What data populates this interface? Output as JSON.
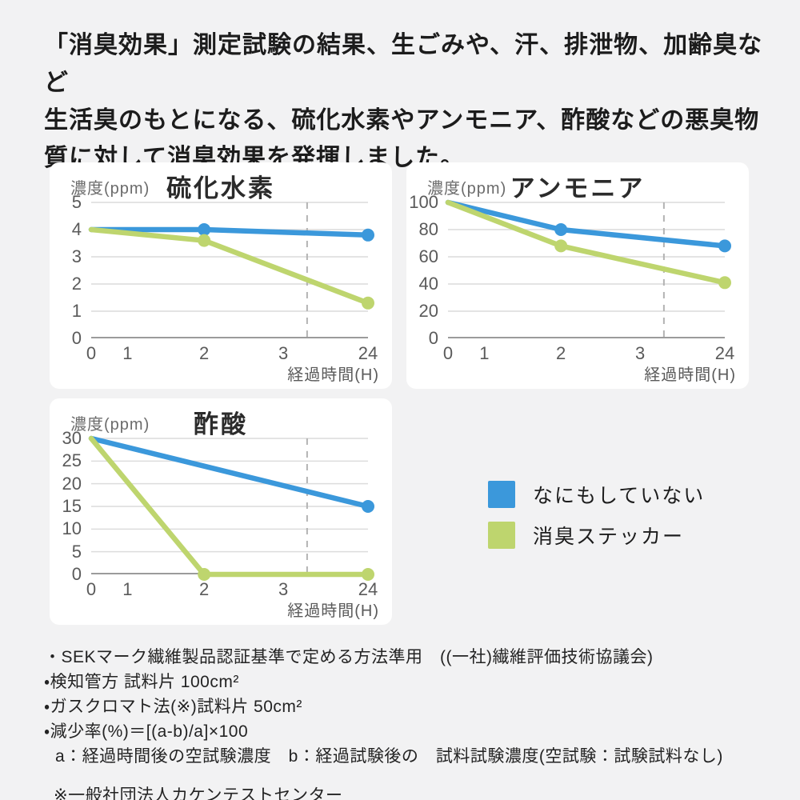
{
  "page": {
    "background": "#f2f2f3",
    "card_background": "#ffffff"
  },
  "header": {
    "lines": [
      "「消臭効果」測定試験の結果、生ごみや、汗、排泄物、加齢臭など",
      "生活臭のもとになる、硫化水素やアンモニア、酢酸などの悪臭物",
      "質に対して消臭効果を発揮しました。"
    ]
  },
  "chart_data": [
    {
      "type": "line",
      "title": "硫化水素",
      "ylabel": "濃度(ppm)",
      "xlabel": "経過時間(H)",
      "x_ticks": [
        0,
        1,
        2,
        3,
        24
      ],
      "x_tick_pos": [
        0,
        0.131,
        0.408,
        0.694,
        1
      ],
      "y_ticks": [
        0,
        1,
        2,
        3,
        4,
        5
      ],
      "ylim": [
        0,
        5
      ],
      "grid": true,
      "guide_pos": 0.78,
      "series": [
        {
          "name": "なにもしていない",
          "color": "#3B98DB",
          "x": [
            0,
            2,
            24
          ],
          "values": [
            4,
            4,
            3.8
          ],
          "markers_at": [
            2,
            24
          ]
        },
        {
          "name": "消臭ステッカー",
          "color": "#BED56E",
          "x": [
            0,
            2,
            24
          ],
          "values": [
            4,
            3.6,
            1.3
          ],
          "markers_at": [
            2,
            24
          ]
        }
      ]
    },
    {
      "type": "line",
      "title": "アンモニア",
      "ylabel": "濃度(ppm)",
      "xlabel": "経過時間(H)",
      "x_ticks": [
        0,
        1,
        2,
        3,
        24
      ],
      "x_tick_pos": [
        0,
        0.131,
        0.408,
        0.694,
        1
      ],
      "y_ticks": [
        0,
        20,
        40,
        60,
        80,
        100
      ],
      "ylim": [
        0,
        100
      ],
      "grid": true,
      "guide_pos": 0.78,
      "series": [
        {
          "name": "なにもしていない",
          "color": "#3B98DB",
          "x": [
            0,
            2,
            24
          ],
          "values": [
            100,
            80,
            68
          ],
          "markers_at": [
            2,
            24
          ]
        },
        {
          "name": "消臭ステッカー",
          "color": "#BED56E",
          "x": [
            0,
            2,
            24
          ],
          "values": [
            100,
            68,
            41
          ],
          "markers_at": [
            2,
            24
          ]
        }
      ]
    },
    {
      "type": "line",
      "title": "酢酸",
      "ylabel": "濃度(ppm)",
      "xlabel": "経過時間(H)",
      "x_ticks": [
        0,
        1,
        2,
        3,
        24
      ],
      "x_tick_pos": [
        0,
        0.131,
        0.408,
        0.694,
        1
      ],
      "y_ticks": [
        0,
        5,
        10,
        15,
        20,
        25,
        30
      ],
      "ylim": [
        0,
        30
      ],
      "grid": true,
      "guide_pos": 0.78,
      "series": [
        {
          "name": "なにもしていない",
          "color": "#3B98DB",
          "x": [
            0,
            24
          ],
          "values": [
            30,
            15
          ],
          "markers_at": [
            24
          ]
        },
        {
          "name": "消臭ステッカー",
          "color": "#BED56E",
          "x": [
            0,
            2,
            24
          ],
          "values": [
            30,
            0,
            0
          ],
          "markers_at": [
            2,
            24
          ]
        }
      ]
    }
  ],
  "legend": {
    "items": [
      {
        "label": "なにもしていない",
        "color": "#3B98DB"
      },
      {
        "label": "消臭ステッカー",
        "color": "#BED56E"
      }
    ]
  },
  "notes": {
    "lines": [
      "・SEKマーク繊維製品認証基準で定める方法準用　((一社)繊維評価技術協議会)",
      "・検知管方 試料片 100cm²",
      "・ガスクロマト法(※)試料片 50cm²",
      "・減少率(%)＝[(a-b)/a]×100",
      "a：経過時間後の空試験濃度　b：経過試験後の　試料試験濃度(空試験：試験試料なし)"
    ],
    "source": "※一般社団法人カケンテストセンター"
  },
  "colors": {
    "untreated_line": "#3B98DB",
    "sticker_line": "#BED56E",
    "gridline": "#dcdcdc",
    "axis": "#9b9b9b",
    "dashed_guide": "#b3b3b3"
  }
}
